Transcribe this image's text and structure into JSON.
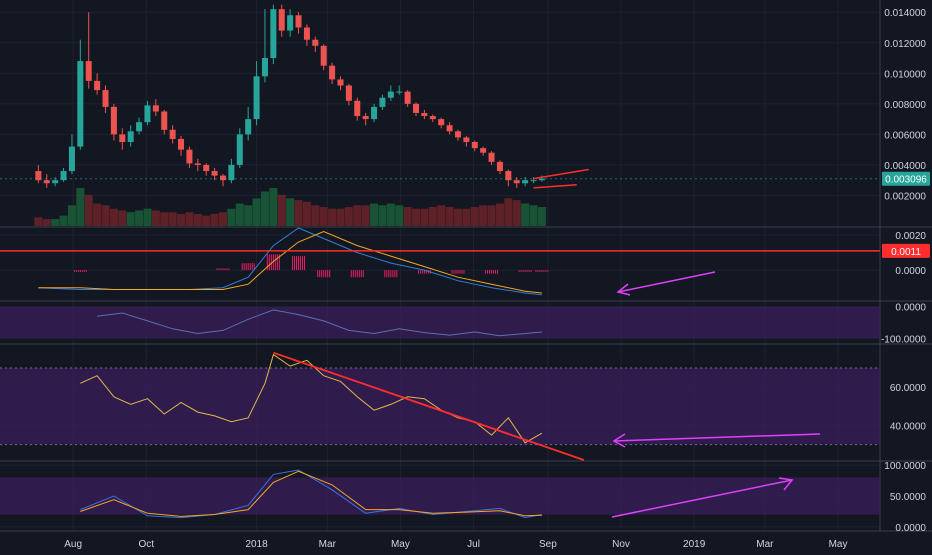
{
  "colors": {
    "background": "#131722",
    "grid": "#1e2230",
    "separator": "#3a3f4e",
    "axis_text": "#d1d4dc",
    "bull": "#26a69a",
    "bear": "#ef5350",
    "volume_bull": "#1b5e3a",
    "volume_bear": "#6b2328",
    "annotation_red": "#ff2d2d",
    "annotation_magenta": "#e040fb",
    "macd_line": "#2f7fd8",
    "signal_line": "#f5a623",
    "histogram": "#e91e63",
    "osc_band": "#3a1f5c",
    "rsi_line": "#e0b84a",
    "stoch_k": "#3d6fe0",
    "stoch_d": "#f5a623",
    "last_price_badge": "#26a69a",
    "level_badge": "#ff2d2d"
  },
  "x_axis": {
    "ticks": [
      "Aug",
      "Oct",
      "2018",
      "Mar",
      "May",
      "Jul",
      "Sep",
      "Nov",
      "2019",
      "Mar",
      "May"
    ]
  },
  "price_pane": {
    "y_ticks": [
      "0.014000",
      "0.012000",
      "0.010000",
      "0.008000",
      "0.006000",
      "0.004000",
      "0.002000"
    ],
    "last_price_label": "0.003096"
  },
  "macd_pane": {
    "y_ticks": [
      "0.0020",
      "0.0000"
    ],
    "level_label": "0.0011"
  },
  "cci_pane": {
    "y_ticks": [
      "0.0000",
      "-100.0000"
    ]
  },
  "rsi_pane": {
    "y_ticks": [
      "60.0000",
      "40.0000"
    ]
  },
  "stoch_pane": {
    "y_ticks": [
      "100.0000",
      "50.0000",
      "0.0000"
    ]
  },
  "chart_data": [
    {
      "type": "candlestick",
      "pane": "price",
      "ylim": [
        0.0,
        0.0148
      ],
      "level_line": 0.0011,
      "x": [
        "2017-07-03",
        "2017-07-10",
        "2017-07-17",
        "2017-07-24",
        "2017-07-31",
        "2017-08-07",
        "2017-08-14",
        "2017-08-21",
        "2017-08-28",
        "2017-09-04",
        "2017-09-11",
        "2017-09-18",
        "2017-09-25",
        "2017-10-02",
        "2017-10-09",
        "2017-10-16",
        "2017-10-23",
        "2017-10-30",
        "2017-11-06",
        "2017-11-13",
        "2017-11-20",
        "2017-11-27",
        "2017-12-04",
        "2017-12-11",
        "2017-12-18",
        "2017-12-25",
        "2018-01-01",
        "2018-01-08",
        "2018-01-15",
        "2018-01-22",
        "2018-01-29",
        "2018-02-05",
        "2018-02-12",
        "2018-02-19",
        "2018-02-26",
        "2018-03-05",
        "2018-03-12",
        "2018-03-19",
        "2018-03-26",
        "2018-04-02",
        "2018-04-09",
        "2018-04-16",
        "2018-04-23",
        "2018-04-30",
        "2018-05-07",
        "2018-05-14",
        "2018-05-21",
        "2018-05-28",
        "2018-06-04",
        "2018-06-11",
        "2018-06-18",
        "2018-06-25",
        "2018-07-02",
        "2018-07-09",
        "2018-07-16",
        "2018-07-23",
        "2018-07-30",
        "2018-08-06",
        "2018-08-13",
        "2018-08-20",
        "2018-08-27"
      ],
      "open": [
        0.0036,
        0.003,
        0.0028,
        0.003,
        0.0036,
        0.0052,
        0.0108,
        0.0095,
        0.0089,
        0.0078,
        0.006,
        0.0055,
        0.0062,
        0.0068,
        0.0079,
        0.0075,
        0.0063,
        0.0057,
        0.005,
        0.0041,
        0.004,
        0.0036,
        0.0033,
        0.003,
        0.004,
        0.006,
        0.007,
        0.0098,
        0.011,
        0.0142,
        0.0128,
        0.0138,
        0.013,
        0.0122,
        0.0118,
        0.0105,
        0.0096,
        0.0092,
        0.0082,
        0.0072,
        0.007,
        0.0078,
        0.0084,
        0.0088,
        0.0088,
        0.008,
        0.0074,
        0.0072,
        0.007,
        0.0066,
        0.0062,
        0.0058,
        0.0055,
        0.0051,
        0.0048,
        0.0042,
        0.0036,
        0.003,
        0.0028,
        0.003,
        0.003
      ],
      "close": [
        0.003,
        0.0028,
        0.003,
        0.0036,
        0.0052,
        0.0108,
        0.0095,
        0.0089,
        0.0078,
        0.006,
        0.0055,
        0.0062,
        0.0068,
        0.0079,
        0.0075,
        0.0063,
        0.0057,
        0.005,
        0.0041,
        0.004,
        0.0036,
        0.0033,
        0.003,
        0.004,
        0.006,
        0.007,
        0.0098,
        0.011,
        0.0142,
        0.0128,
        0.0138,
        0.013,
        0.0122,
        0.0118,
        0.0105,
        0.0096,
        0.0092,
        0.0082,
        0.0072,
        0.007,
        0.0078,
        0.0084,
        0.0088,
        0.0088,
        0.008,
        0.0074,
        0.0072,
        0.007,
        0.0066,
        0.0062,
        0.0058,
        0.0055,
        0.0051,
        0.0048,
        0.0042,
        0.0036,
        0.003,
        0.0028,
        0.003,
        0.003,
        0.0031
      ],
      "high": [
        0.004,
        0.0034,
        0.0032,
        0.0038,
        0.006,
        0.0122,
        0.014,
        0.01,
        0.0092,
        0.008,
        0.0064,
        0.0066,
        0.0071,
        0.0082,
        0.0083,
        0.0076,
        0.0066,
        0.0059,
        0.0052,
        0.0044,
        0.0041,
        0.0038,
        0.0034,
        0.0044,
        0.0064,
        0.0078,
        0.0108,
        0.0142,
        0.0145,
        0.0145,
        0.0142,
        0.014,
        0.0132,
        0.0124,
        0.0119,
        0.0107,
        0.0098,
        0.0093,
        0.0084,
        0.0074,
        0.008,
        0.0086,
        0.0092,
        0.0092,
        0.0089,
        0.0081,
        0.0076,
        0.0073,
        0.0071,
        0.0068,
        0.0063,
        0.0059,
        0.0056,
        0.0052,
        0.0049,
        0.0043,
        0.0037,
        0.0032,
        0.0032,
        0.0032,
        0.0033
      ],
      "low": [
        0.0028,
        0.0025,
        0.0026,
        0.0029,
        0.0034,
        0.005,
        0.009,
        0.0086,
        0.0074,
        0.0056,
        0.005,
        0.0052,
        0.006,
        0.0066,
        0.0072,
        0.006,
        0.0054,
        0.0046,
        0.0038,
        0.0036,
        0.0033,
        0.003,
        0.0026,
        0.0028,
        0.0038,
        0.0056,
        0.0066,
        0.0094,
        0.0106,
        0.0124,
        0.0124,
        0.0126,
        0.0118,
        0.0114,
        0.0102,
        0.0093,
        0.0089,
        0.0079,
        0.0069,
        0.0066,
        0.0068,
        0.0076,
        0.0082,
        0.0086,
        0.0078,
        0.0072,
        0.007,
        0.0068,
        0.0064,
        0.006,
        0.0056,
        0.0052,
        0.0049,
        0.0046,
        0.004,
        0.0034,
        0.0026,
        0.0025,
        0.0026,
        0.0028,
        0.0029
      ],
      "volume": [
        0.0005,
        0.0004,
        0.0004,
        0.0006,
        0.0012,
        0.0022,
        0.0018,
        0.0013,
        0.0012,
        0.001,
        0.0009,
        0.0008,
        0.0009,
        0.001,
        0.0009,
        0.0008,
        0.0008,
        0.0007,
        0.0008,
        0.0007,
        0.0006,
        0.0007,
        0.0008,
        0.001,
        0.0013,
        0.0012,
        0.0016,
        0.002,
        0.0022,
        0.0018,
        0.0016,
        0.0015,
        0.0014,
        0.0012,
        0.0011,
        0.001,
        0.001,
        0.0011,
        0.0012,
        0.0012,
        0.0013,
        0.0012,
        0.0013,
        0.0012,
        0.0011,
        0.001,
        0.001,
        0.0011,
        0.0012,
        0.0011,
        0.001,
        0.001,
        0.0011,
        0.0012,
        0.0012,
        0.0013,
        0.0016,
        0.0015,
        0.0013,
        0.0012,
        0.0011
      ]
    },
    {
      "type": "line",
      "pane": "macd",
      "ylim": [
        -0.0017,
        0.0024
      ],
      "level_line": 0.0011,
      "x": [
        "2017-07-03",
        "2017-08-07",
        "2017-09-04",
        "2017-10-02",
        "2017-11-06",
        "2017-12-04",
        "2017-12-25",
        "2018-01-15",
        "2018-02-05",
        "2018-02-26",
        "2018-03-26",
        "2018-04-23",
        "2018-05-21",
        "2018-06-18",
        "2018-07-16",
        "2018-08-13",
        "2018-08-27"
      ],
      "series": [
        {
          "values": [
            -0.001,
            -0.0011,
            -0.0011,
            -0.0011,
            -0.0011,
            -0.001,
            -0.0004,
            0.0014,
            0.0024,
            0.0018,
            0.001,
            0.0004,
            0.0,
            -0.0006,
            -0.001,
            -0.0013,
            -0.0014
          ]
        },
        {
          "values": [
            -0.001,
            -0.001,
            -0.0011,
            -0.0011,
            -0.0011,
            -0.0011,
            -0.0008,
            0.0005,
            0.0016,
            0.0022,
            0.0014,
            0.0008,
            0.0002,
            -0.0004,
            -0.0008,
            -0.0012,
            -0.0013
          ]
        }
      ],
      "histogram": [
        0.0,
        -0.0001,
        0.0,
        0.0,
        0.0,
        0.0001,
        0.0004,
        0.0009,
        0.0008,
        -0.0004,
        -0.0004,
        -0.0004,
        -0.0002,
        -0.0002,
        -0.0002,
        -0.0001,
        -0.0001
      ]
    },
    {
      "type": "line",
      "pane": "cci",
      "ylim": [
        -115,
        15
      ],
      "x": [
        "2017-08-21",
        "2017-09-11",
        "2017-10-02",
        "2017-10-23",
        "2017-11-13",
        "2017-12-04",
        "2017-12-25",
        "2018-01-15",
        "2018-02-05",
        "2018-02-26",
        "2018-03-19",
        "2018-04-09",
        "2018-04-30",
        "2018-05-21",
        "2018-06-11",
        "2018-07-02",
        "2018-07-23",
        "2018-08-13",
        "2018-08-27"
      ],
      "series": [
        {
          "values": [
            -30,
            -20,
            -45,
            -70,
            -85,
            -75,
            -40,
            -10,
            -25,
            -45,
            -75,
            -85,
            -70,
            -82,
            -90,
            -80,
            -92,
            -85,
            -80
          ]
        }
      ]
    },
    {
      "type": "line",
      "pane": "rsi",
      "ylim": [
        22,
        82
      ],
      "trendline": [
        78,
        22
      ],
      "x": [
        "2017-08-07",
        "2017-08-21",
        "2017-09-04",
        "2017-09-18",
        "2017-10-02",
        "2017-10-16",
        "2017-10-30",
        "2017-11-13",
        "2017-11-27",
        "2017-12-11",
        "2017-12-25",
        "2018-01-08",
        "2018-01-15",
        "2018-01-29",
        "2018-02-12",
        "2018-02-26",
        "2018-03-12",
        "2018-03-26",
        "2018-04-09",
        "2018-04-23",
        "2018-05-07",
        "2018-05-21",
        "2018-06-04",
        "2018-06-18",
        "2018-07-02",
        "2018-07-16",
        "2018-07-30",
        "2018-08-13",
        "2018-08-27"
      ],
      "series": [
        {
          "values": [
            62,
            66,
            55,
            51,
            54,
            46,
            52,
            47,
            45,
            42,
            44,
            62,
            77,
            71,
            74,
            66,
            63,
            55,
            48,
            51,
            55,
            54,
            48,
            44,
            42,
            35,
            44,
            31,
            36
          ]
        }
      ]
    },
    {
      "type": "line",
      "pane": "stoch",
      "ylim": [
        -5,
        105
      ],
      "x": [
        "2017-08-07",
        "2017-09-04",
        "2017-10-02",
        "2017-10-30",
        "2017-11-27",
        "2017-12-25",
        "2018-01-15",
        "2018-02-05",
        "2018-03-05",
        "2018-04-02",
        "2018-04-30",
        "2018-05-28",
        "2018-06-25",
        "2018-07-23",
        "2018-08-13",
        "2018-08-27"
      ],
      "series": [
        {
          "values": [
            28,
            50,
            18,
            15,
            20,
            35,
            85,
            92,
            60,
            22,
            30,
            20,
            25,
            30,
            15,
            20
          ]
        },
        {
          "values": [
            25,
            44,
            22,
            17,
            20,
            28,
            72,
            90,
            68,
            28,
            28,
            22,
            24,
            26,
            18,
            19
          ]
        }
      ]
    }
  ]
}
